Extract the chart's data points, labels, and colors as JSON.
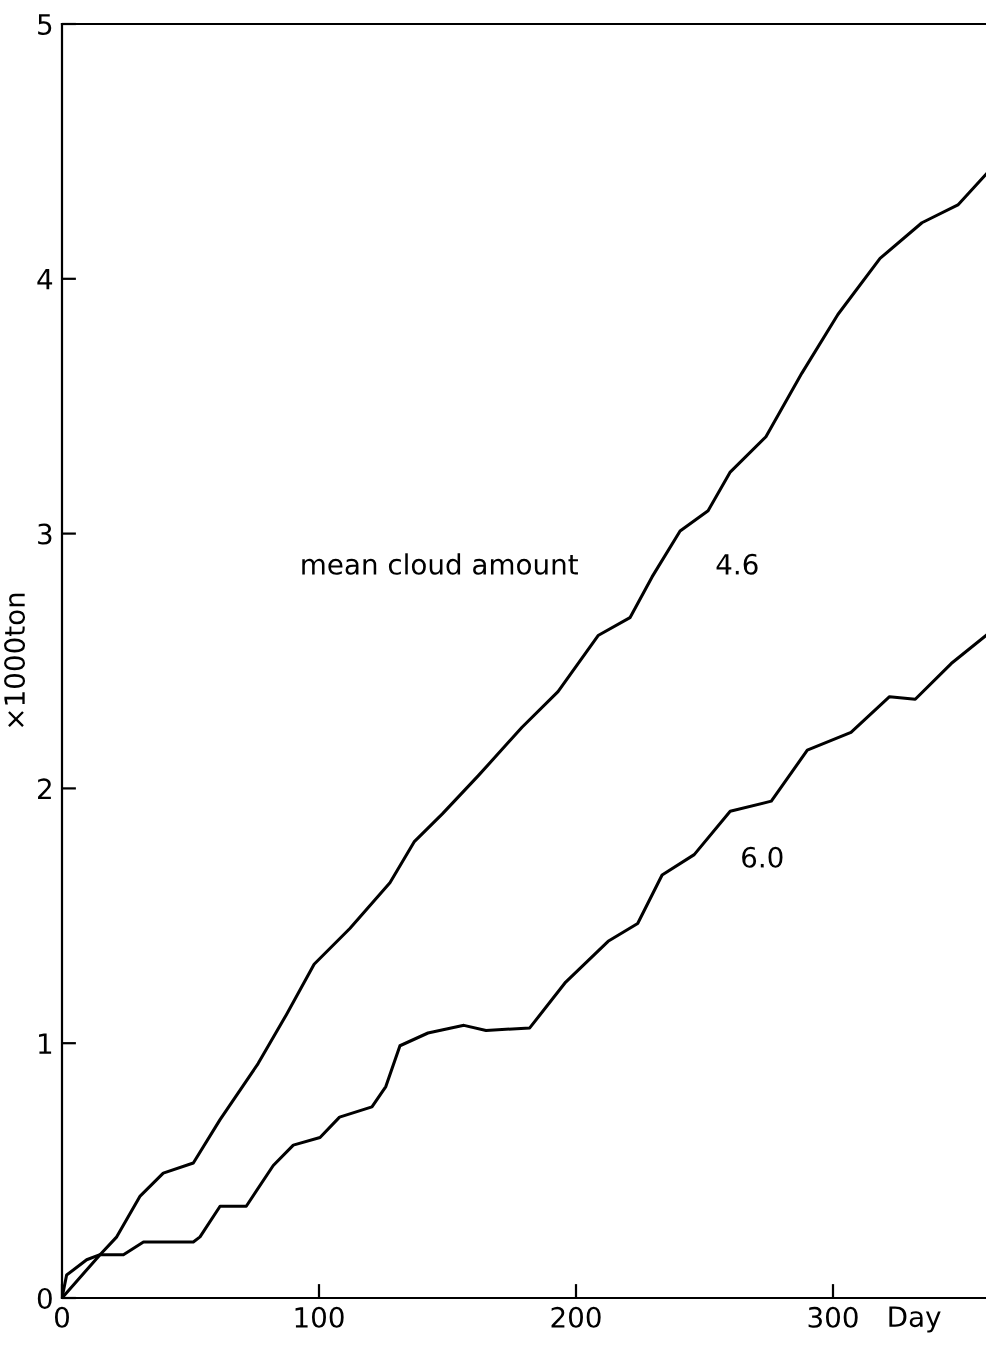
{
  "chart_data": {
    "type": "line",
    "xlabel": "Day",
    "ylabel": "×1000ton",
    "xlim": [
      0,
      360
    ],
    "xticks": [
      0,
      100,
      200,
      300
    ],
    "ylim": [
      0,
      5
    ],
    "yticks": [
      0,
      1,
      2,
      3,
      4,
      5
    ],
    "grid": false,
    "legend": false,
    "marker": "none",
    "line_style": "solid",
    "series": [
      {
        "color": "#000000",
        "x": [
          0,
          14.8,
          21.3,
          30.4,
          39.4,
          51.1,
          61.5,
          76.3,
          87.2,
          98.1,
          112,
          127.6,
          137,
          148,
          162,
          179,
          193,
          208.6,
          221,
          229.6,
          240.5,
          251.4,
          259.9,
          273.9,
          287.9,
          301.9,
          318.3,
          334.6,
          348.6,
          359.5
        ],
        "values": [
          0,
          0.17,
          0.24,
          0.4,
          0.49,
          0.53,
          0.7,
          0.92,
          1.11,
          1.31,
          1.45,
          1.63,
          1.79,
          1.9,
          2.05,
          2.24,
          2.38,
          2.6,
          2.67,
          2.83,
          3.01,
          3.09,
          3.24,
          3.38,
          3.63,
          3.86,
          4.08,
          4.22,
          4.29,
          4.41
        ]
      },
      {
        "color": "#000000",
        "x": [
          0,
          1.8,
          9.6,
          14.8,
          23.9,
          31.7,
          51.1,
          53.7,
          61.5,
          71.7,
          82.2,
          90,
          100.4,
          108,
          120.6,
          126,
          131.5,
          142.4,
          156.4,
          165,
          182,
          196,
          212.5,
          224,
          233.5,
          246,
          260,
          276,
          290,
          307,
          322,
          332,
          346,
          359.5
        ],
        "values": [
          0,
          0.09,
          0.15,
          0.17,
          0.17,
          0.22,
          0.22,
          0.24,
          0.36,
          0.36,
          0.52,
          0.6,
          0.63,
          0.71,
          0.75,
          0.83,
          0.99,
          1.04,
          1.07,
          1.05,
          1.06,
          1.24,
          1.4,
          1.47,
          1.66,
          1.74,
          1.91,
          1.95,
          2.15,
          2.22,
          2.36,
          2.35,
          2.49,
          2.6
        ]
      }
    ],
    "annotations": [
      "mean cloud amount",
      "4.6",
      "6.0"
    ]
  }
}
